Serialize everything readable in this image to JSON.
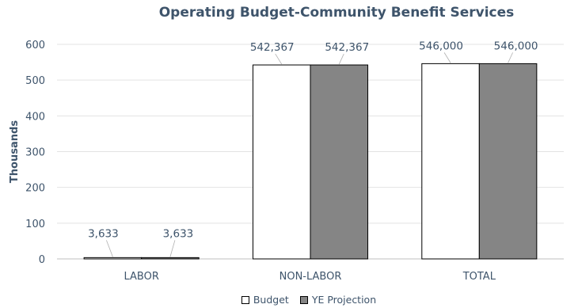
{
  "chart_data": {
    "type": "bar",
    "title": "Operating Budget-Community Benefit Services",
    "ylabel": "Thousands",
    "xlabel": "",
    "ylim": [
      0,
      600
    ],
    "yticks": [
      0,
      100,
      200,
      300,
      400,
      500,
      600
    ],
    "categories": [
      "LABOR",
      "NON-LABOR",
      "TOTAL"
    ],
    "series": [
      {
        "name": "Budget",
        "values": [
          3.633,
          542.367,
          546.0
        ],
        "labels": [
          "3,633",
          "542,367",
          "546,000"
        ],
        "color": "#ffffff"
      },
      {
        "name": "YE Projection",
        "values": [
          3.633,
          542.367,
          546.0
        ],
        "labels": [
          "3,633",
          "542,367",
          "546,000"
        ],
        "color": "#858585"
      }
    ],
    "grid": true,
    "legend": "bottom"
  }
}
